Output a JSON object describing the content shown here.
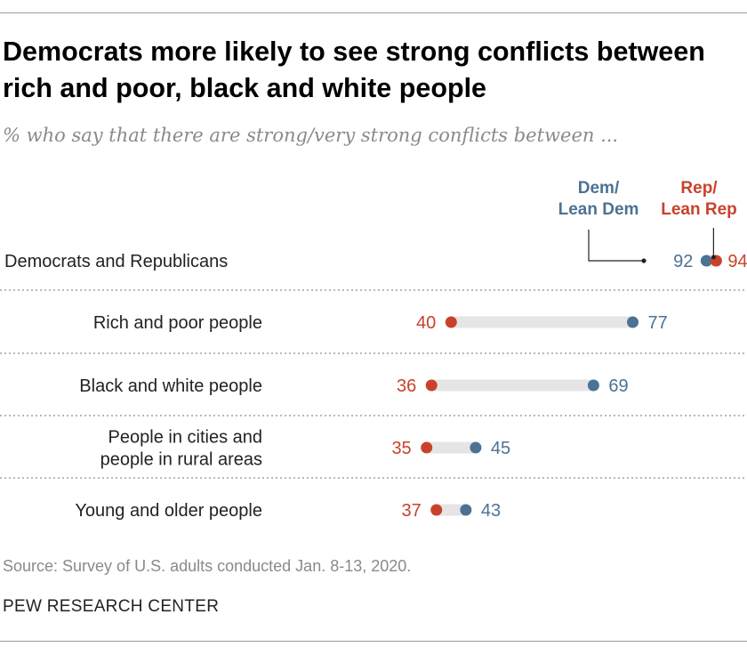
{
  "title": "Democrats more likely to see strong conflicts between rich and poor, black and white people",
  "subtitle": "% who say that there are strong/very strong conflicts between ...",
  "source": "Source: Survey of U.S. adults conducted Jan. 8-13, 2020.",
  "organization": "PEW RESEARCH CENTER",
  "colors": {
    "dem": "#4c7293",
    "rep": "#c8422b",
    "connector": "#e5e5e5",
    "divider": "#9a9a9a"
  },
  "chart_data": {
    "type": "dot",
    "xlim": [
      0,
      100
    ],
    "legend_placement": "top-right, above first row",
    "series": [
      {
        "key": "dem",
        "name": "Dem/ Lean Dem",
        "legend_lines": [
          "Dem/",
          "Lean Dem"
        ]
      },
      {
        "key": "rep",
        "name": "Rep/ Lean Rep",
        "legend_lines": [
          "Rep/",
          "Lean Rep"
        ]
      }
    ],
    "rows": [
      {
        "label_lines": [
          "Democrats and Republicans"
        ],
        "dem": 92,
        "rep": 94
      },
      {
        "label_lines": [
          "Rich and poor people"
        ],
        "dem": 77,
        "rep": 40
      },
      {
        "label_lines": [
          "Black and white people"
        ],
        "dem": 69,
        "rep": 36
      },
      {
        "label_lines": [
          "People in cities and",
          "people in rural areas"
        ],
        "dem": 45,
        "rep": 35
      },
      {
        "label_lines": [
          "Young and older people"
        ],
        "dem": 43,
        "rep": 37
      }
    ]
  }
}
